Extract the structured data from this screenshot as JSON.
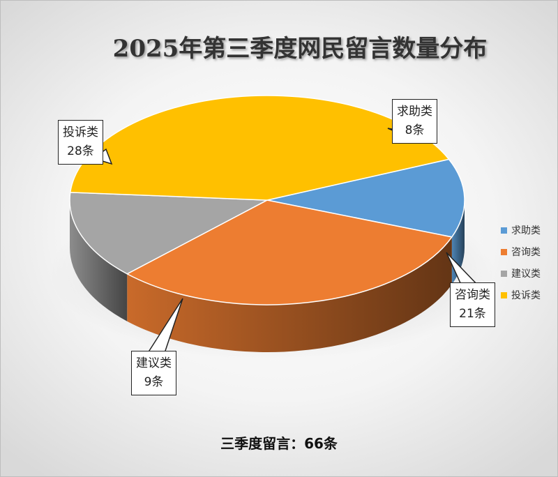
{
  "chart_data": {
    "type": "pie",
    "title": "2025年第三季度网民留言数量分布",
    "series": [
      {
        "name": "求助类",
        "value": 8,
        "label_value": "8条",
        "color": "#5B9BD5"
      },
      {
        "name": "咨询类",
        "value": 21,
        "label_value": "21条",
        "color": "#ED7D31"
      },
      {
        "name": "建议类",
        "value": 9,
        "label_value": "9条",
        "color": "#A5A5A5"
      },
      {
        "name": "投诉类",
        "value": 28,
        "label_value": "28条",
        "color": "#FFC000"
      }
    ],
    "legend_position": "right",
    "style": "3d"
  },
  "footer": {
    "text": "三季度留言：66条"
  }
}
